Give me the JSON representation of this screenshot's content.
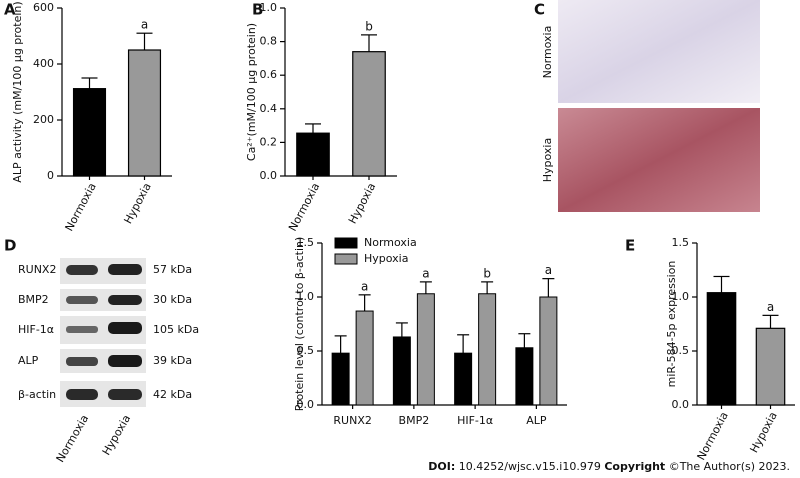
{
  "chart_data": [
    {
      "type": "bar",
      "panel": "A",
      "y_label": "ALP activity (mM/100 μg protein)",
      "categories": [
        "Normoxia",
        "Hypoxia"
      ],
      "values": [
        312,
        450
      ],
      "errors": [
        38,
        60
      ],
      "annotations": [
        null,
        "a"
      ],
      "colors": [
        "#000000",
        "#999999"
      ],
      "ylim": [
        0,
        600
      ],
      "yticks": [
        0,
        200,
        400,
        600
      ]
    },
    {
      "type": "bar",
      "panel": "B",
      "y_label": "Ca²⁺(mM/100 μg protein)",
      "categories": [
        "Normoxia",
        "Hypoxia"
      ],
      "values": [
        0.255,
        0.74
      ],
      "errors": [
        0.055,
        0.1
      ],
      "annotations": [
        null,
        "b"
      ],
      "colors": [
        "#000000",
        "#999999"
      ],
      "ylim": [
        0,
        1.0
      ],
      "yticks": [
        {
          "value": 0,
          "label": "0.0"
        },
        0.2,
        0.4,
        0.6,
        0.8,
        {
          "value": 1,
          "label": "1.0"
        }
      ]
    },
    {
      "type": "grouped_bar",
      "panel": "D",
      "y_label": "Protein level (control to β-actin)",
      "categories": [
        "RUNX2",
        "BMP2",
        "HIF-1α",
        "ALP"
      ],
      "series": [
        {
          "name": "Normoxia",
          "color": "#000000",
          "values": [
            0.48,
            0.63,
            0.48,
            0.53
          ],
          "errors": [
            0.16,
            0.13,
            0.17,
            0.13
          ]
        },
        {
          "name": "Hypoxia",
          "color": "#999999",
          "values": [
            0.87,
            1.03,
            1.03,
            1.0
          ],
          "errors": [
            0.15,
            0.11,
            0.11,
            0.17
          ],
          "annotations": [
            "a",
            "a",
            "b",
            "a"
          ]
        }
      ],
      "ylim": [
        0,
        1.5
      ],
      "yticks": [
        {
          "value": 0,
          "label": "0.0"
        },
        0.5,
        {
          "value": 1,
          "label": "1.0"
        },
        1.5
      ]
    },
    {
      "type": "bar",
      "panel": "E",
      "y_label": "miR-584-5p expression",
      "categories": [
        "Normoxia",
        "Hypoxia"
      ],
      "values": [
        1.04,
        0.71
      ],
      "errors": [
        0.15,
        0.12
      ],
      "annotations": [
        null,
        "a"
      ],
      "colors": [
        "#000000",
        "#999999"
      ],
      "ylim": [
        0,
        1.5
      ],
      "yticks": [
        {
          "value": 0,
          "label": "0.0"
        },
        0.5,
        {
          "value": 1,
          "label": "1.0"
        },
        1.5
      ]
    }
  ],
  "images": {
    "panel": "C",
    "labels": [
      "Normoxia",
      "Hypoxia"
    ]
  },
  "blot": {
    "panel": "D",
    "proteins": [
      "RUNX2",
      "BMP2",
      "HIF-1α",
      "ALP",
      "β-actin"
    ],
    "sizes": [
      "57 kDa",
      "30 kDa",
      "105 kDa",
      "39 kDa",
      "42 kDa"
    ],
    "lanes": [
      "Normoxia",
      "Hypoxia"
    ]
  },
  "footer": {
    "doi_label": "DOI:",
    "doi": "10.4252/wjsc.v15.i10.979",
    "copyright_label": "Copyright",
    "copyright": "©The Author(s) 2023."
  }
}
